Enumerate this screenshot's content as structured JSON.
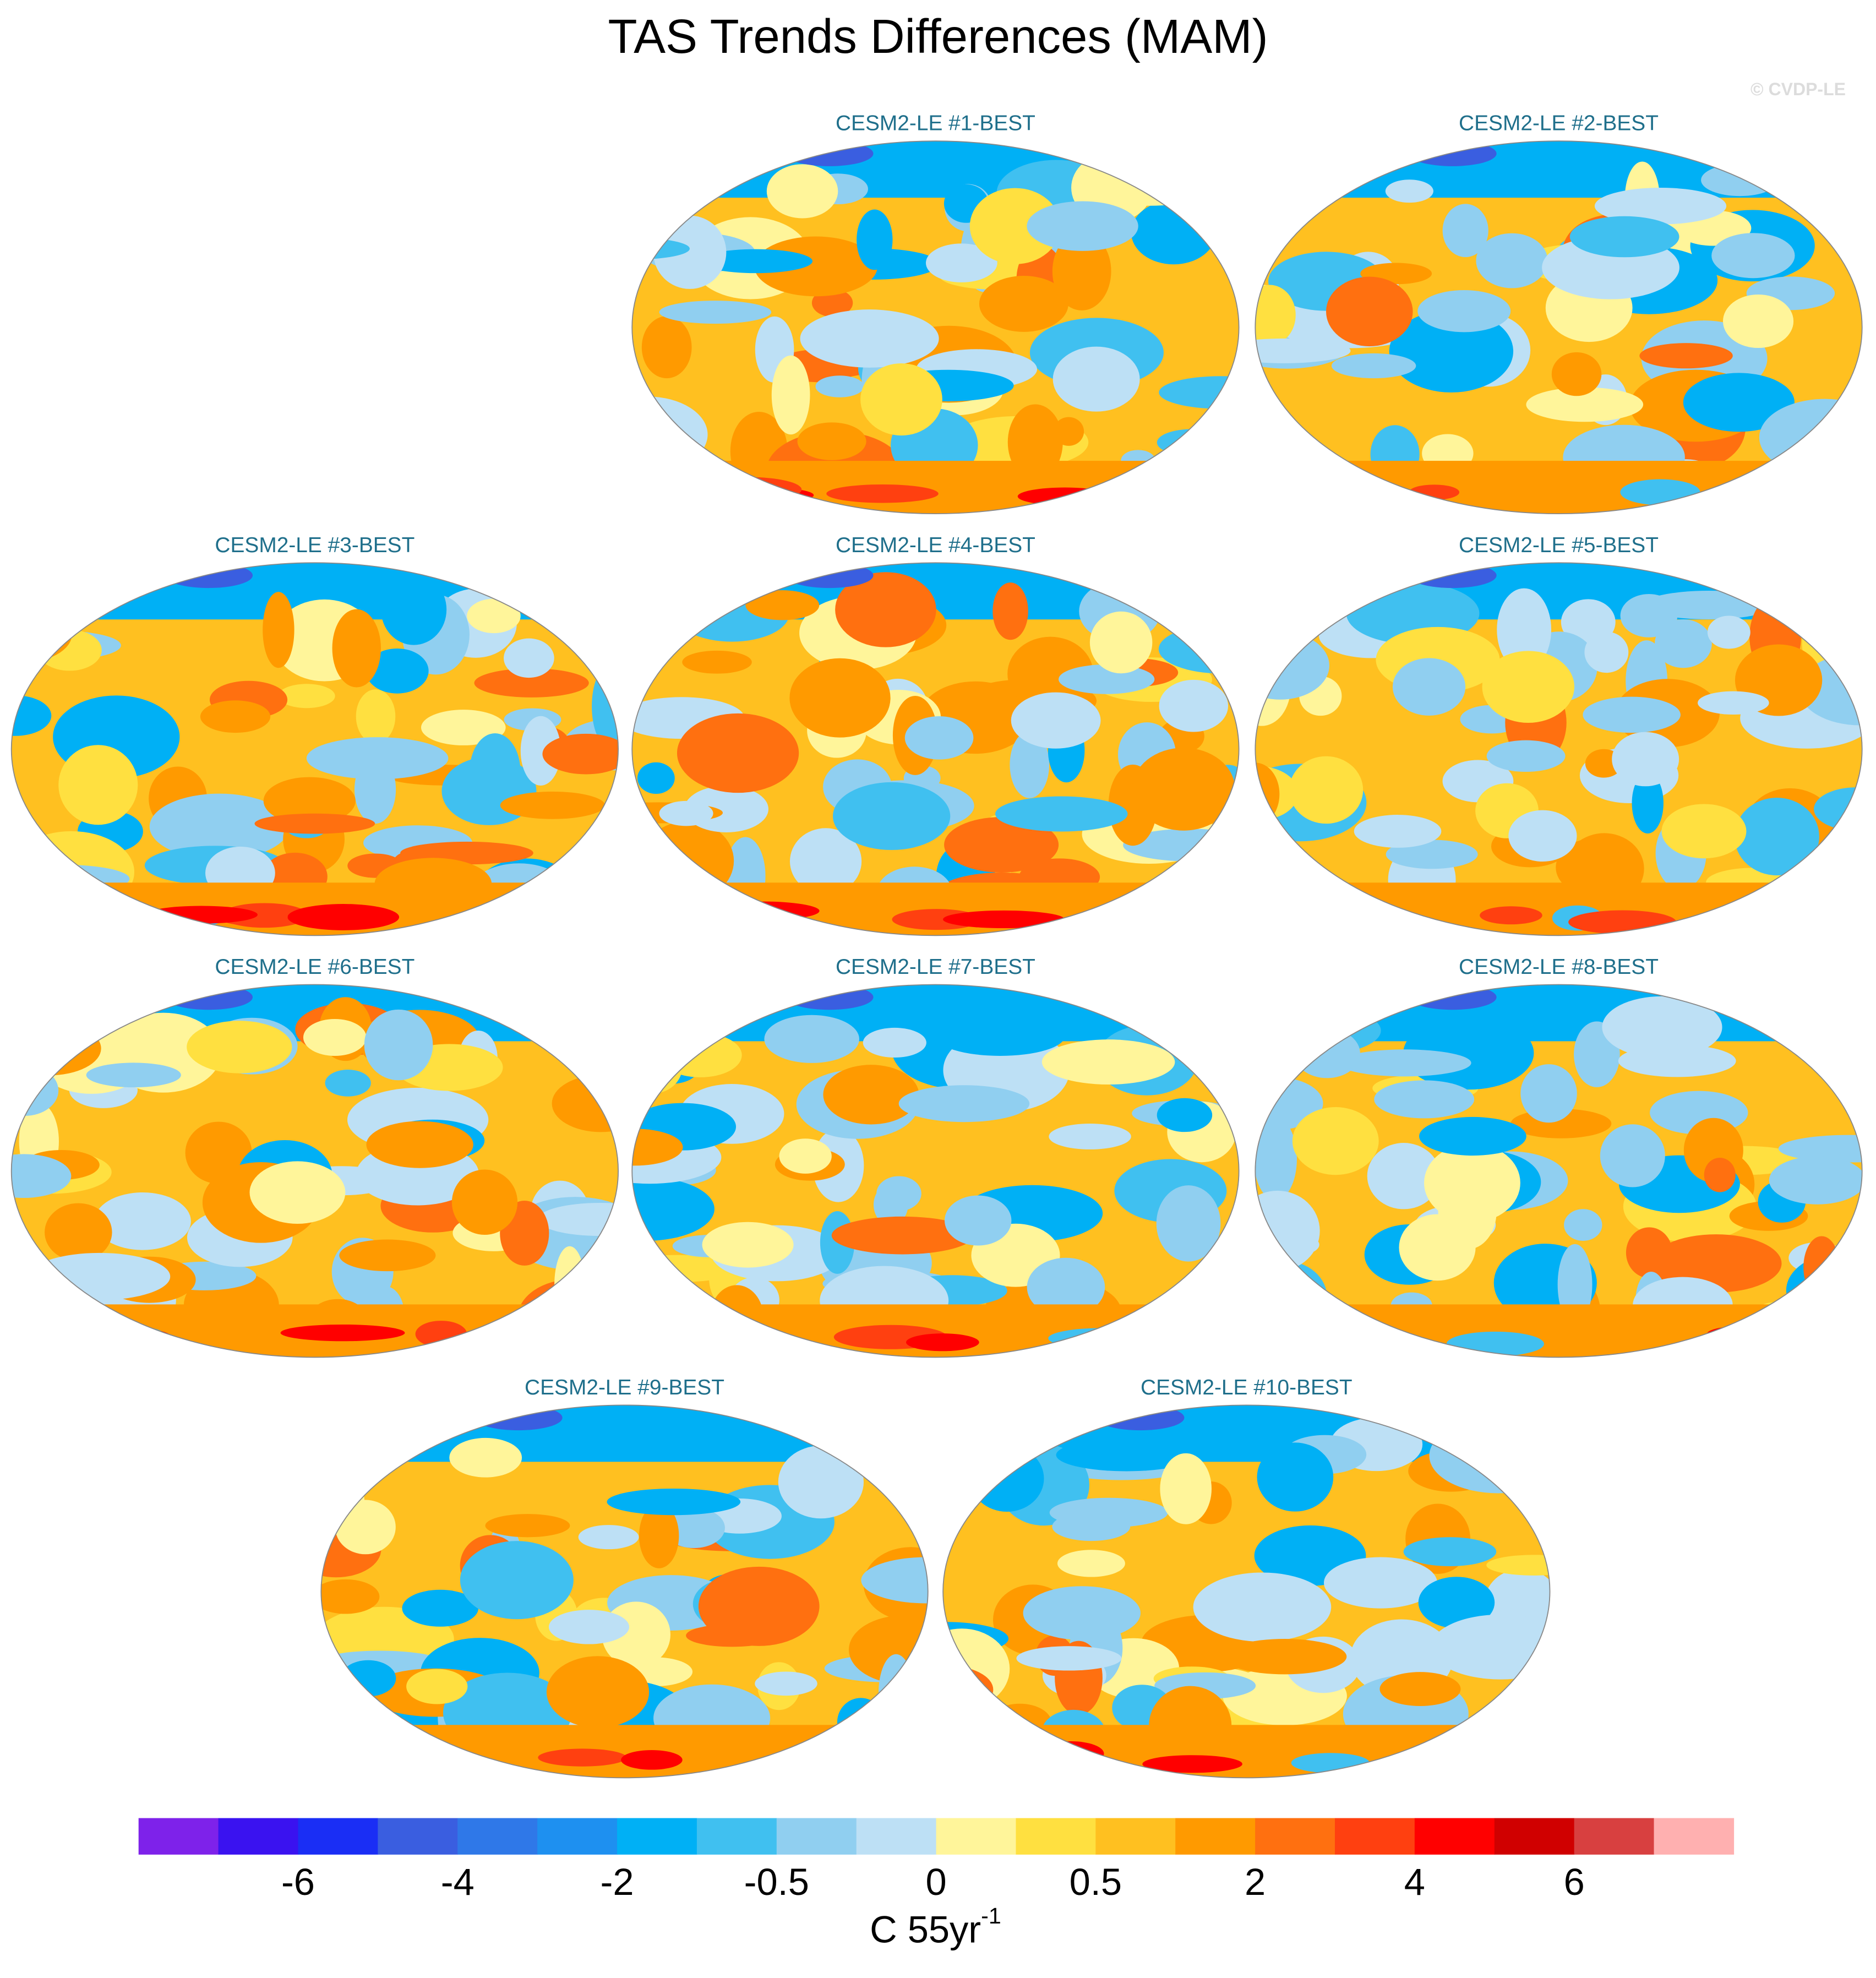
{
  "title": "TAS Trends Differences (MAM)",
  "watermark": "© CVDP-LE",
  "panels": [
    {
      "title": "CESM2-LE #1-BEST"
    },
    {
      "title": "CESM2-LE #2-BEST"
    },
    {
      "title": "CESM2-LE #3-BEST"
    },
    {
      "title": "CESM2-LE #4-BEST"
    },
    {
      "title": "CESM2-LE #5-BEST"
    },
    {
      "title": "CESM2-LE #6-BEST"
    },
    {
      "title": "CESM2-LE #7-BEST"
    },
    {
      "title": "CESM2-LE #8-BEST"
    },
    {
      "title": "CESM2-LE #9-BEST"
    },
    {
      "title": "CESM2-LE #10-BEST"
    }
  ],
  "colorbar": {
    "colors": [
      "#7e22ea",
      "#3a12f0",
      "#1a2ef5",
      "#3a5ee0",
      "#2f78e8",
      "#1e90f0",
      "#00b0f5",
      "#40c0f0",
      "#90cff0",
      "#bde0f5",
      "#fff59a",
      "#ffe040",
      "#ffc020",
      "#ff9a00",
      "#ff7010",
      "#ff4010",
      "#ff0000",
      "#d00000",
      "#d84040",
      "#ffb0b0"
    ],
    "ticks": [
      -6,
      -4,
      -2,
      -0.5,
      0,
      0.5,
      2,
      4,
      6
    ],
    "units": {
      "base": "C 55yr",
      "exponent": "-1"
    }
  }
}
